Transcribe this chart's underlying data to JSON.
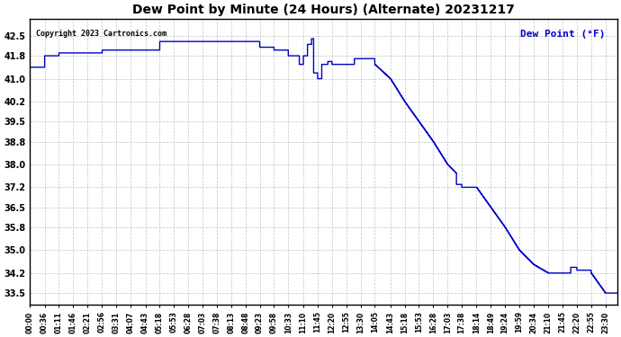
{
  "title": "Dew Point by Minute (24 Hours) (Alternate) 20231217",
  "legend_label": "Dew Point (°F)",
  "copyright_text": "Copyright 2023 Cartronics.com",
  "line_color": "#0000CC",
  "legend_color": "#0000CC",
  "background_color": "#ffffff",
  "grid_color": "#aaaaaa",
  "title_color": "#000000",
  "yticks": [
    33.5,
    34.2,
    35.0,
    35.8,
    36.5,
    37.2,
    38.0,
    38.8,
    39.5,
    40.2,
    41.0,
    41.8,
    42.5
  ],
  "ylim": [
    33.1,
    43.1
  ],
  "xtick_labels": [
    "00:00",
    "00:36",
    "01:11",
    "01:46",
    "02:21",
    "02:56",
    "03:31",
    "04:07",
    "04:43",
    "05:18",
    "05:53",
    "06:28",
    "07:03",
    "07:38",
    "08:13",
    "08:48",
    "09:23",
    "09:58",
    "10:33",
    "11:10",
    "11:45",
    "12:20",
    "12:55",
    "13:30",
    "14:05",
    "14:43",
    "15:18",
    "15:53",
    "16:28",
    "17:03",
    "17:38",
    "18:14",
    "18:49",
    "19:24",
    "19:59",
    "20:34",
    "21:10",
    "21:45",
    "22:20",
    "22:55",
    "23:30"
  ],
  "segment_times": [
    0,
    36,
    71,
    106,
    141,
    176,
    211,
    247,
    283,
    318,
    353,
    388,
    423,
    458,
    493,
    528,
    563,
    598,
    633,
    670,
    705,
    740,
    775,
    810,
    845,
    883,
    918,
    953,
    988,
    1023,
    1058,
    1094,
    1129,
    1164,
    1199,
    1234,
    1270,
    1305,
    1340,
    1375,
    1410
  ],
  "segment_values": [
    41.4,
    41.8,
    41.9,
    41.9,
    41.9,
    41.9,
    41.9,
    41.9,
    41.9,
    42.3,
    42.3,
    42.3,
    42.3,
    42.3,
    42.3,
    42.3,
    42.1,
    42.0,
    41.8,
    41.5,
    42.4,
    41.5,
    41.5,
    41.7,
    41.2,
    41.1,
    41.0,
    40.8,
    40.2,
    39.5,
    38.8,
    38.0,
    37.2,
    36.5,
    35.8,
    35.0,
    34.5,
    34.2,
    34.2,
    34.4,
    33.6
  ]
}
